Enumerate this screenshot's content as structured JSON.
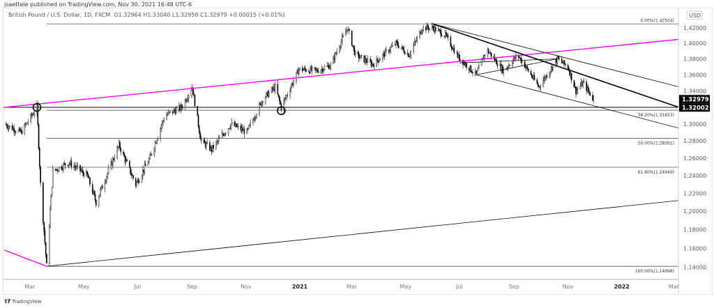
{
  "header": {
    "published": "jsaettele published on TradingView.com, Nov 30, 2021 16:48 UTC-6"
  },
  "legend": {
    "symbol": "British Pound / U.S. Dollar, 1D, FXCM",
    "ohlc": "O1.32964  H1.33040  L1.32950  C1.32979  +0.00015 (+0.01%)"
  },
  "footer": {
    "brand": "TradingView"
  },
  "colors": {
    "trendline_magenta": "#ff00ff",
    "candle": "#000000",
    "price_label_bg": "#000000"
  },
  "chart_data": {
    "type": "candlestick",
    "scale": "log",
    "currency": "USD",
    "price_ticks": [
      "1.42000",
      "1.40000",
      "1.38000",
      "1.36000",
      "1.34000",
      "1.30000",
      "1.28000",
      "1.26000",
      "1.24000",
      "1.22000",
      "1.20000",
      "1.18000",
      "1.16000",
      "1.14000"
    ],
    "time_ticks": [
      {
        "label": "Mar",
        "date": "2020-03-01"
      },
      {
        "label": "May",
        "date": "2020-05-01"
      },
      {
        "label": "Jul",
        "date": "2020-07-01"
      },
      {
        "label": "Sep",
        "date": "2020-09-01"
      },
      {
        "label": "Nov",
        "date": "2020-11-01"
      },
      {
        "label": "2021",
        "date": "2021-01-01",
        "bold": true
      },
      {
        "label": "Mar",
        "date": "2021-03-01"
      },
      {
        "label": "May",
        "date": "2021-05-01"
      },
      {
        "label": "Jul",
        "date": "2021-07-01"
      },
      {
        "label": "Sep",
        "date": "2021-09-01"
      },
      {
        "label": "Nov",
        "date": "2021-11-01"
      },
      {
        "label": "2022",
        "date": "2022-01-01",
        "bold": true
      },
      {
        "label": "Mar",
        "date": "2022-03-01"
      }
    ],
    "price_path": [
      [
        "2020-02-01",
        1.3
      ],
      [
        "2020-02-20",
        1.29
      ],
      [
        "2020-03-09",
        1.32
      ],
      [
        "2020-03-13",
        1.23
      ],
      [
        "2020-03-20",
        1.141
      ],
      [
        "2020-03-27",
        1.245
      ],
      [
        "2020-04-14",
        1.255
      ],
      [
        "2020-05-05",
        1.24
      ],
      [
        "2020-05-15",
        1.21
      ],
      [
        "2020-06-10",
        1.275
      ],
      [
        "2020-06-29",
        1.23
      ],
      [
        "2020-07-15",
        1.26
      ],
      [
        "2020-08-01",
        1.31
      ],
      [
        "2020-08-20",
        1.32
      ],
      [
        "2020-09-01",
        1.345
      ],
      [
        "2020-09-11",
        1.28
      ],
      [
        "2020-09-23",
        1.27
      ],
      [
        "2020-10-15",
        1.3
      ],
      [
        "2020-11-02",
        1.29
      ],
      [
        "2020-11-20",
        1.33
      ],
      [
        "2020-12-04",
        1.345
      ],
      [
        "2020-12-11",
        1.32
      ],
      [
        "2020-12-31",
        1.367
      ],
      [
        "2021-01-20",
        1.365
      ],
      [
        "2021-02-05",
        1.372
      ],
      [
        "2021-02-24",
        1.42
      ],
      [
        "2021-03-05",
        1.385
      ],
      [
        "2021-03-25",
        1.373
      ],
      [
        "2021-04-20",
        1.4
      ],
      [
        "2021-05-05",
        1.385
      ],
      [
        "2021-05-20",
        1.42
      ],
      [
        "2021-06-01",
        1.42
      ],
      [
        "2021-06-15",
        1.41
      ],
      [
        "2021-06-30",
        1.382
      ],
      [
        "2021-07-20",
        1.36
      ],
      [
        "2021-08-01",
        1.392
      ],
      [
        "2021-08-20",
        1.365
      ],
      [
        "2021-09-05",
        1.385
      ],
      [
        "2021-09-29",
        1.345
      ],
      [
        "2021-10-20",
        1.38
      ],
      [
        "2021-11-01",
        1.37
      ],
      [
        "2021-11-10",
        1.34
      ],
      [
        "2021-11-18",
        1.35
      ],
      [
        "2021-11-30",
        1.3298
      ]
    ],
    "last_price": "1.32979",
    "level_label": "1.32002",
    "fib_levels": [
      {
        "label": "0.00%(1.42504)",
        "price": 1.42504
      },
      {
        "label": "38.20%(1.31653)",
        "price": 1.31653
      },
      {
        "label": "50.00%(1.28301)",
        "price": 1.28301
      },
      {
        "label": "61.80%(1.24949)",
        "price": 1.24949
      },
      {
        "label": "100.00%(1.14098)",
        "price": 1.14098
      }
    ],
    "horizontal_levels": [
      1.32002
    ],
    "trendlines": [
      {
        "color": "#ff00ff",
        "from": [
          "2020-02-01",
          1.32
        ],
        "to": [
          "2022-03-07",
          1.405
        ]
      },
      {
        "color": "#ff00ff",
        "from": [
          "2020-02-01",
          1.158
        ],
        "to": [
          "2020-03-20",
          1.141
        ]
      },
      {
        "color": "#000000",
        "from": [
          "2020-03-20",
          1.141
        ],
        "to": [
          "2022-03-07",
          1.212
        ]
      },
      {
        "color": "#000000",
        "from": [
          "2021-06-01",
          1.425
        ],
        "to": [
          "2022-03-07",
          1.345
        ]
      },
      {
        "color": "#000000",
        "from": [
          "2021-06-01",
          1.425
        ],
        "to": [
          "2022-03-07",
          1.32
        ],
        "thick": true
      },
      {
        "color": "#000000",
        "from": [
          "2021-07-20",
          1.36
        ],
        "to": [
          "2022-03-07",
          1.295
        ]
      },
      {
        "color": "#000000",
        "from": [
          "2021-07-01",
          1.375
        ],
        "to": [
          "2021-10-20",
          1.38
        ]
      },
      {
        "color": "#000000",
        "from": [
          "2021-07-20",
          1.36
        ],
        "to": [
          "2021-10-20",
          1.38
        ]
      }
    ],
    "circles": [
      [
        "2020-03-09",
        1.32
      ],
      [
        "2020-12-11",
        1.316
      ]
    ]
  }
}
